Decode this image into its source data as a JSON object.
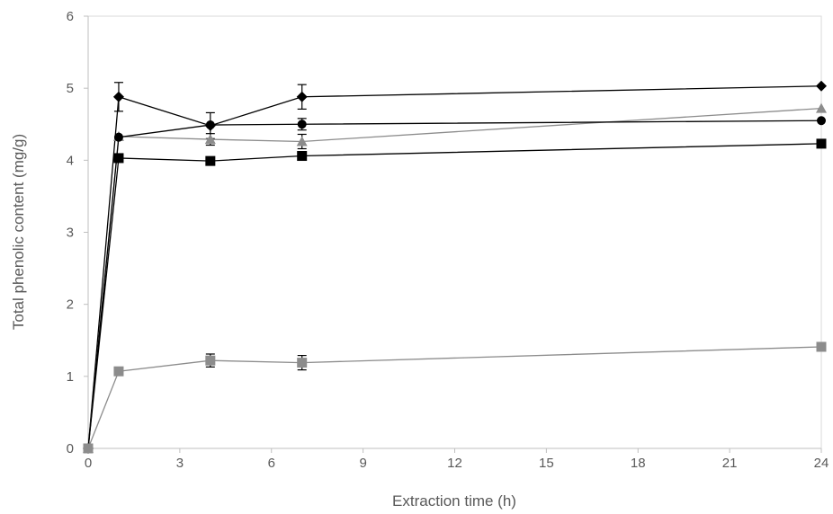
{
  "chart_data": {
    "type": "line",
    "title": "",
    "xlabel": "Extraction time (h)",
    "ylabel": "Total phenolic content (mg/g)",
    "xlim": [
      0,
      24
    ],
    "ylim": [
      0,
      6
    ],
    "xticks": [
      0,
      3,
      6,
      9,
      12,
      15,
      18,
      21,
      24
    ],
    "yticks": [
      0,
      1,
      2,
      3,
      4,
      5,
      6
    ],
    "grid": false,
    "x": [
      0,
      1,
      4,
      7,
      24
    ],
    "series": [
      {
        "marker": "diamond",
        "color": "#000000",
        "values": [
          0,
          4.88,
          4.48,
          4.88,
          5.03
        ],
        "errors": [
          0,
          0.2,
          0.18,
          0.17,
          0
        ]
      },
      {
        "marker": "triangle",
        "color": "#8c8c8c",
        "values": [
          0,
          4.33,
          4.29,
          4.26,
          4.72
        ],
        "errors": [
          0,
          0,
          0.08,
          0.1,
          0
        ]
      },
      {
        "marker": "circle",
        "color": "#000000",
        "values": [
          0,
          4.32,
          4.49,
          4.5,
          4.55
        ],
        "errors": [
          0,
          0,
          0,
          0.08,
          0
        ]
      },
      {
        "marker": "square",
        "color": "#000000",
        "values": [
          0,
          4.03,
          3.99,
          4.06,
          4.23
        ],
        "errors": [
          0,
          0,
          0,
          0.06,
          0
        ]
      },
      {
        "marker": "square",
        "color": "#8c8c8c",
        "values": [
          0,
          1.07,
          1.22,
          1.19,
          1.41
        ],
        "errors": [
          0,
          0,
          0.09,
          0.1,
          0
        ]
      }
    ]
  }
}
